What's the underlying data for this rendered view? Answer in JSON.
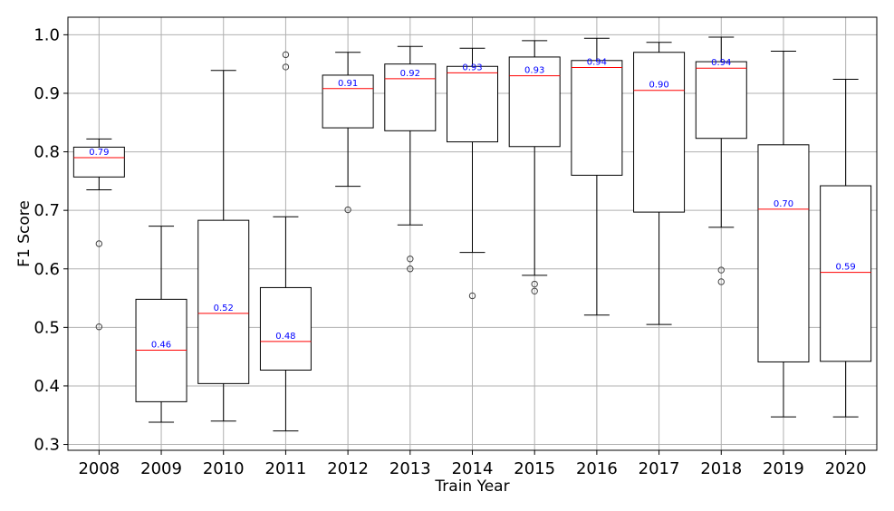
{
  "chart_data": {
    "type": "box",
    "title": "",
    "xlabel": "Train Year",
    "ylabel": "F1 Score",
    "ylim": [
      0.29,
      1.03
    ],
    "yticks": [
      "0.3",
      "0.4",
      "0.5",
      "0.6",
      "0.7",
      "0.8",
      "0.9",
      "1.0"
    ],
    "grid": true,
    "legend": "none",
    "colors": {
      "box": "#000000",
      "median": "#ff0000",
      "median_label": "#0000ff",
      "grid": "#b0b0b0"
    },
    "categories": [
      "2008",
      "2009",
      "2010",
      "2011",
      "2012",
      "2013",
      "2014",
      "2015",
      "2016",
      "2017",
      "2018",
      "2019",
      "2020"
    ],
    "boxes": [
      {
        "whisker_low": 0.735,
        "q1": 0.757,
        "median": 0.79,
        "q3": 0.808,
        "whisker_high": 0.822,
        "outliers": [
          0.643,
          0.501
        ],
        "median_label": "0.79"
      },
      {
        "whisker_low": 0.338,
        "q1": 0.373,
        "median": 0.461,
        "q3": 0.548,
        "whisker_high": 0.673,
        "outliers": [],
        "median_label": "0.46"
      },
      {
        "whisker_low": 0.34,
        "q1": 0.404,
        "median": 0.524,
        "q3": 0.683,
        "whisker_high": 0.939,
        "outliers": [],
        "median_label": "0.52"
      },
      {
        "whisker_low": 0.323,
        "q1": 0.427,
        "median": 0.476,
        "q3": 0.568,
        "whisker_high": 0.689,
        "outliers": [
          0.966,
          0.945
        ],
        "median_label": "0.48"
      },
      {
        "whisker_low": 0.741,
        "q1": 0.841,
        "median": 0.908,
        "q3": 0.931,
        "whisker_high": 0.97,
        "outliers": [
          0.701
        ],
        "median_label": "0.91"
      },
      {
        "whisker_low": 0.675,
        "q1": 0.836,
        "median": 0.925,
        "q3": 0.95,
        "whisker_high": 0.98,
        "outliers": [
          0.617,
          0.6
        ],
        "median_label": "0.92"
      },
      {
        "whisker_low": 0.628,
        "q1": 0.817,
        "median": 0.935,
        "q3": 0.946,
        "whisker_high": 0.977,
        "outliers": [
          0.554
        ],
        "median_label": "0.93"
      },
      {
        "whisker_low": 0.589,
        "q1": 0.809,
        "median": 0.93,
        "q3": 0.962,
        "whisker_high": 0.99,
        "outliers": [
          0.574,
          0.562
        ],
        "median_label": "0.93"
      },
      {
        "whisker_low": 0.521,
        "q1": 0.76,
        "median": 0.944,
        "q3": 0.956,
        "whisker_high": 0.994,
        "outliers": [],
        "median_label": "0.94"
      },
      {
        "whisker_low": 0.505,
        "q1": 0.697,
        "median": 0.905,
        "q3": 0.97,
        "whisker_high": 0.987,
        "outliers": [],
        "median_label": "0.90"
      },
      {
        "whisker_low": 0.671,
        "q1": 0.823,
        "median": 0.943,
        "q3": 0.954,
        "whisker_high": 0.996,
        "outliers": [
          0.598,
          0.578
        ],
        "median_label": "0.94"
      },
      {
        "whisker_low": 0.347,
        "q1": 0.441,
        "median": 0.702,
        "q3": 0.812,
        "whisker_high": 0.972,
        "outliers": [],
        "median_label": "0.70"
      },
      {
        "whisker_low": 0.347,
        "q1": 0.442,
        "median": 0.594,
        "q3": 0.742,
        "whisker_high": 0.924,
        "outliers": [],
        "median_label": "0.59"
      }
    ]
  }
}
